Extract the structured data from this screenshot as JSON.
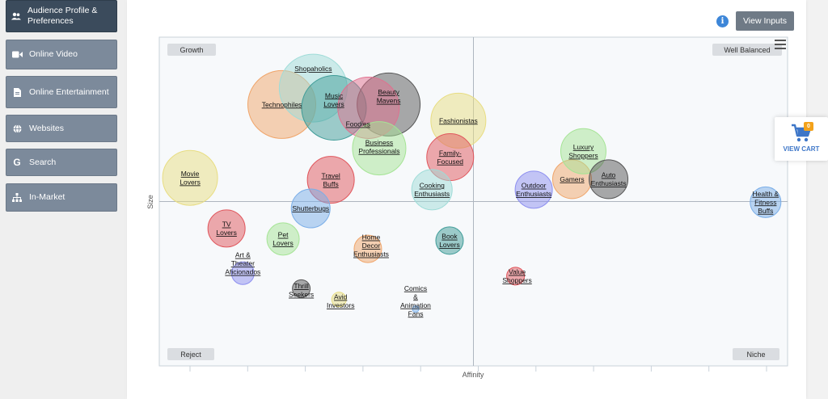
{
  "sidebar": {
    "items": [
      {
        "label": "Audience Profile & Preferences",
        "icon": "users-icon",
        "active": true
      },
      {
        "label": "Online Video",
        "icon": "video-camera-icon",
        "active": false
      },
      {
        "label": "Online Entertainment",
        "icon": "document-icon",
        "active": false
      },
      {
        "label": "Websites",
        "icon": "globe-icon",
        "active": false
      },
      {
        "label": "Search",
        "icon": "google-icon",
        "active": false
      },
      {
        "label": "In-Market",
        "icon": "sitemap-icon",
        "active": false
      }
    ]
  },
  "toolbar": {
    "view_inputs_label": "View Inputs",
    "info_icon": "info-icon"
  },
  "cart": {
    "label": "VIEW CART",
    "count": "0",
    "icon": "cart-icon"
  },
  "chart_data": {
    "type": "scatter",
    "xlabel": "Affinity",
    "ylabel": "Size",
    "xlim": [
      0,
      100
    ],
    "ylim": [
      0,
      100
    ],
    "center": [
      50,
      50
    ],
    "quadrants": {
      "top_left": "Growth",
      "top_right": "Well Balanced",
      "bottom_left": "Reject",
      "bottom_right": "Niche"
    },
    "grid": false,
    "points": [
      {
        "name": "Technophiles",
        "x": 19.5,
        "y": 79.5,
        "size": 42,
        "color": "#f0a56a"
      },
      {
        "name": "Shopaholics",
        "x": 24.5,
        "y": 84.5,
        "size": 42,
        "color": "#9fdcd8"
      },
      {
        "name": "Music Lovers",
        "x": 27.8,
        "y": 78.5,
        "size": 40,
        "color": "#3f9c98"
      },
      {
        "name": "Beauty Mavens",
        "x": 36.5,
        "y": 79.5,
        "size": 39,
        "color": "#555555"
      },
      {
        "name": "Foodies",
        "x": 33.3,
        "y": 78.5,
        "size": 38,
        "color": "#e26f8e"
      },
      {
        "name": "Business Professionals",
        "x": 35,
        "y": 66.2,
        "size": 33,
        "color": "#a5e495"
      },
      {
        "name": "Fashionistas",
        "x": 47.6,
        "y": 74.6,
        "size": 34,
        "color": "#e8dd82"
      },
      {
        "name": "Family-Focused",
        "x": 46.3,
        "y": 63.5,
        "size": 29,
        "color": "#e0565c"
      },
      {
        "name": "Movie Lovers",
        "x": 4.9,
        "y": 57.2,
        "size": 34,
        "color": "#e8dd82"
      },
      {
        "name": "Travel Buffs",
        "x": 27.3,
        "y": 56.6,
        "size": 29,
        "color": "#e0565c"
      },
      {
        "name": "Cooking Enthusiasts",
        "x": 43.4,
        "y": 53.6,
        "size": 25,
        "color": "#9fdcd8"
      },
      {
        "name": "Shutterbugs",
        "x": 24.1,
        "y": 47.9,
        "size": 24,
        "color": "#7aaee8"
      },
      {
        "name": "TV Lovers",
        "x": 10.7,
        "y": 41.8,
        "size": 23,
        "color": "#e0565c"
      },
      {
        "name": "Pet Lovers",
        "x": 19.7,
        "y": 38.6,
        "size": 20,
        "color": "#a5e495"
      },
      {
        "name": "Home Decor Enthusiasts",
        "x": 33.2,
        "y": 35.6,
        "size": 17,
        "color": "#f0a56a"
      },
      {
        "name": "Book Lovers",
        "x": 46.2,
        "y": 38.1,
        "size": 17,
        "color": "#3f9c98"
      },
      {
        "name": "Art & Theater Aficionados",
        "x": 13.3,
        "y": 28.2,
        "size": 14,
        "color": "#8d8ff0"
      },
      {
        "name": "Thrill Seekers",
        "x": 22.6,
        "y": 23.5,
        "size": 11,
        "color": "#555555"
      },
      {
        "name": "Avid Investors",
        "x": 28.6,
        "y": 20.2,
        "size": 9,
        "color": "#e8dd82"
      },
      {
        "name": "Comics & Animation Fans",
        "x": 40.8,
        "y": 17.3,
        "size": 4,
        "color": "#7aaee8"
      },
      {
        "name": "Value Shoppers",
        "x": 56.7,
        "y": 27.3,
        "size": 11,
        "color": "#e0565c"
      },
      {
        "name": "Outdoor Enthusiasts",
        "x": 59.6,
        "y": 53.6,
        "size": 23,
        "color": "#8d8ff0"
      },
      {
        "name": "Gamers",
        "x": 65.7,
        "y": 56.8,
        "size": 24,
        "color": "#f0a56a"
      },
      {
        "name": "Luxury Shoppers",
        "x": 67.5,
        "y": 65.3,
        "size": 28,
        "color": "#a5e495"
      },
      {
        "name": "Auto Enthusiasts",
        "x": 71.5,
        "y": 56.8,
        "size": 24,
        "color": "#555555"
      },
      {
        "name": "Health & Fitness Buffs",
        "x": 96.5,
        "y": 49.8,
        "size": 19,
        "color": "#7aaee8"
      }
    ]
  }
}
